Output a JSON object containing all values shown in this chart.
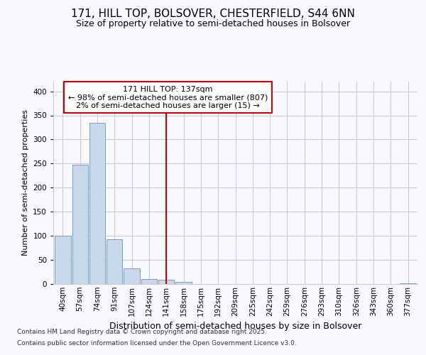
{
  "title_line1": "171, HILL TOP, BOLSOVER, CHESTERFIELD, S44 6NN",
  "title_line2": "Size of property relative to semi-detached houses in Bolsover",
  "xlabel": "Distribution of semi-detached houses by size in Bolsover",
  "ylabel": "Number of semi-detached properties",
  "bin_labels": [
    "40sqm",
    "57sqm",
    "74sqm",
    "91sqm",
    "107sqm",
    "124sqm",
    "141sqm",
    "158sqm",
    "175sqm",
    "192sqm",
    "209sqm",
    "225sqm",
    "242sqm",
    "259sqm",
    "276sqm",
    "293sqm",
    "310sqm",
    "326sqm",
    "343sqm",
    "360sqm",
    "377sqm"
  ],
  "bar_values": [
    100,
    247,
    335,
    93,
    33,
    11,
    9,
    4,
    0,
    0,
    0,
    0,
    0,
    0,
    0,
    0,
    0,
    0,
    0,
    0,
    2
  ],
  "bar_color": "#c8d8ea",
  "bar_edge_color": "#7090b0",
  "highlight_index": 6,
  "highlight_color": "#cc0000",
  "annotation_line1": "171 HILL TOP: 137sqm",
  "annotation_line2": "← 98% of semi-detached houses are smaller (807)",
  "annotation_line3": "2% of semi-detached houses are larger (15) →",
  "annotation_box_color": "#ffffff",
  "annotation_box_edge": "#cc0000",
  "ylim": [
    0,
    420
  ],
  "yticks": [
    0,
    50,
    100,
    150,
    200,
    250,
    300,
    350,
    400
  ],
  "footer_line1": "Contains HM Land Registry data © Crown copyright and database right 2025.",
  "footer_line2": "Contains public sector information licensed under the Open Government Licence v3.0.",
  "bg_color": "#f8f8ff",
  "grid_color": "#c8c8d8",
  "title_fontsize": 11,
  "subtitle_fontsize": 9,
  "ylabel_fontsize": 8,
  "xlabel_fontsize": 9,
  "tick_fontsize": 7.5,
  "annot_fontsize": 8,
  "footer_fontsize": 6.5
}
